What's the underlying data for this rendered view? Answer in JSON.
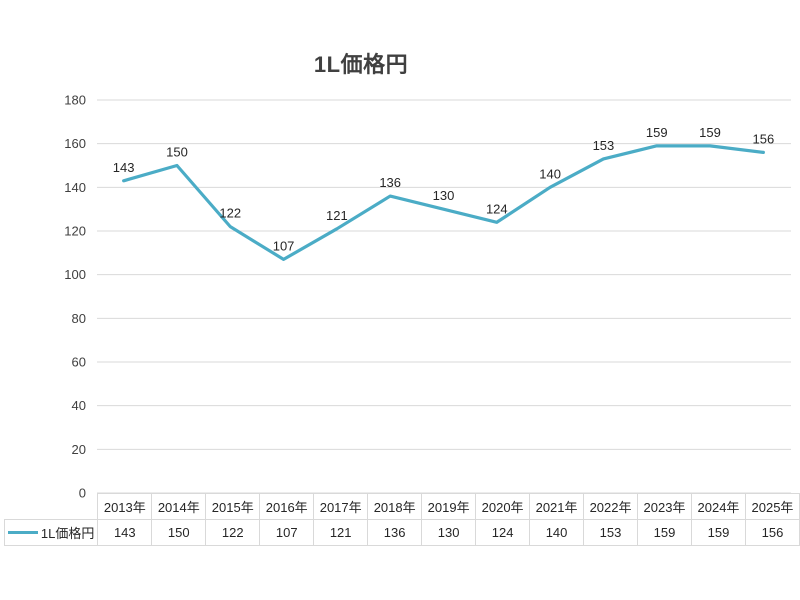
{
  "chart_data": {
    "type": "line",
    "title": "1L価格円",
    "categories": [
      "2013年",
      "2014年",
      "2015年",
      "2016年",
      "2017年",
      "2018年",
      "2019年",
      "2020年",
      "2021年",
      "2022年",
      "2023年",
      "2024年",
      "2025年"
    ],
    "series": [
      {
        "name": "1L価格円",
        "color": "#4bacc6",
        "values": [
          143,
          150,
          122,
          107,
          121,
          136,
          130,
          124,
          140,
          153,
          159,
          159,
          156
        ]
      }
    ],
    "ylim": [
      0,
      180
    ],
    "y_ticks": [
      0,
      20,
      40,
      60,
      80,
      100,
      120,
      140,
      160,
      180
    ],
    "grid": "horizontal-only",
    "data_labels_position": "above-points",
    "legend_position": "data-table-left",
    "legend_swatch": "line",
    "colors": {
      "gridline": "#d9d9d9",
      "table_border": "#d9d9d9",
      "table_text": "#262626",
      "axis_tick_text": "#404040",
      "data_label_text": "#262626",
      "title_text": "#404040",
      "background": "#ffffff"
    }
  }
}
